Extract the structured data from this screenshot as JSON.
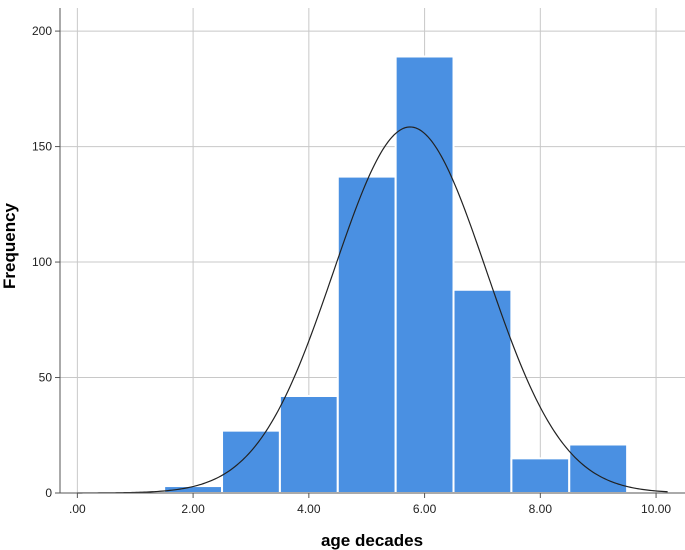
{
  "chart_data": {
    "type": "bar",
    "xlabel": "age decades",
    "ylabel": "Frequency",
    "xlim": [
      -0.3,
      10.5
    ],
    "ylim": [
      0,
      210
    ],
    "x_ticks": [
      ".00",
      "2.00",
      "4.00",
      "6.00",
      "8.00",
      "10.00"
    ],
    "x_tick_values": [
      0,
      2,
      4,
      6,
      8,
      10
    ],
    "y_ticks": [
      "0",
      "50",
      "100",
      "150",
      "200"
    ],
    "y_tick_values": [
      0,
      50,
      100,
      150,
      200
    ],
    "bins": [
      {
        "x0": 1.5,
        "x1": 2.5,
        "value": 3
      },
      {
        "x0": 2.5,
        "x1": 3.5,
        "value": 27
      },
      {
        "x0": 3.5,
        "x1": 4.5,
        "value": 42
      },
      {
        "x0": 4.5,
        "x1": 5.5,
        "value": 137
      },
      {
        "x0": 5.5,
        "x1": 6.5,
        "value": 189
      },
      {
        "x0": 6.5,
        "x1": 7.5,
        "value": 88
      },
      {
        "x0": 7.5,
        "x1": 8.5,
        "value": 15
      },
      {
        "x0": 8.5,
        "x1": 9.5,
        "value": 21
      }
    ],
    "normal_curve": {
      "mean": 5.75,
      "sd": 1.32,
      "peak": 158.5
    },
    "grid": true,
    "colors": {
      "bar": "#4a90e2",
      "bar_edge": "#ffffff",
      "curve": "#222222",
      "grid": "#c8c8c8",
      "axis": "#555555"
    }
  }
}
